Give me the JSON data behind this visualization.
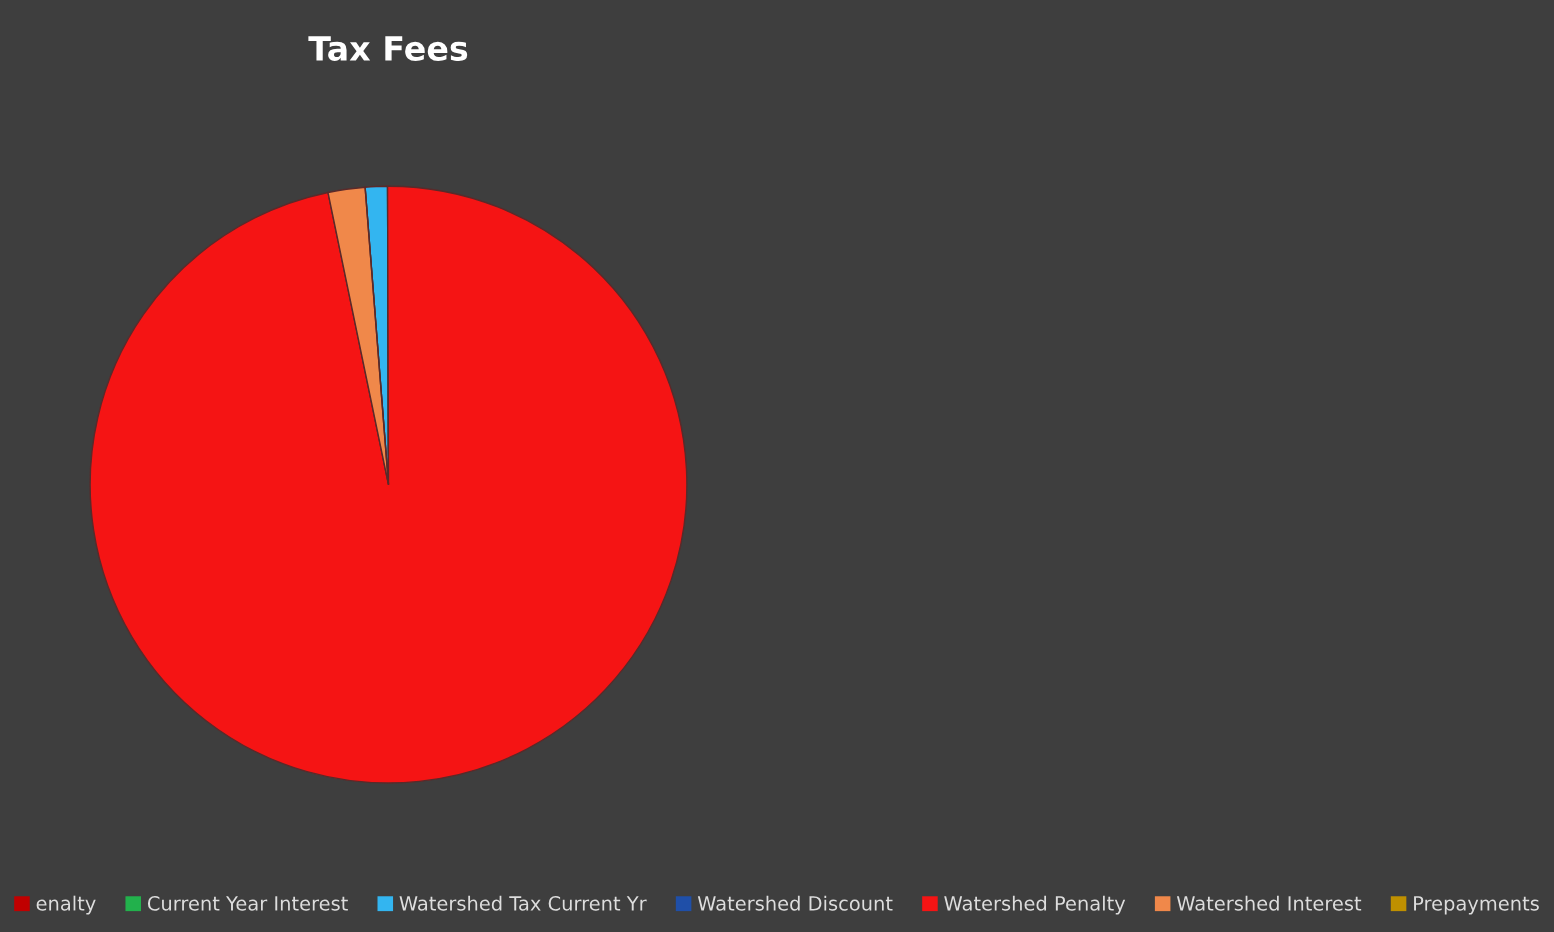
{
  "chart_data": {
    "type": "pie",
    "title": "Tax Fees",
    "categories": [
      "enalty",
      "Current Year Interest",
      "Watershed Tax Current Yr",
      "Watershed Discount",
      "Watershed Penalty",
      "Watershed Interest",
      "Prepayments"
    ],
    "values": [
      0,
      0,
      1.2,
      0,
      96.8,
      2.0,
      0
    ],
    "colors": [
      "#c00000",
      "#22b14c",
      "#33b5f0",
      "#1f4fa8",
      "#f51414",
      "#f0884a",
      "#bf9000"
    ],
    "legend": "bottom"
  }
}
